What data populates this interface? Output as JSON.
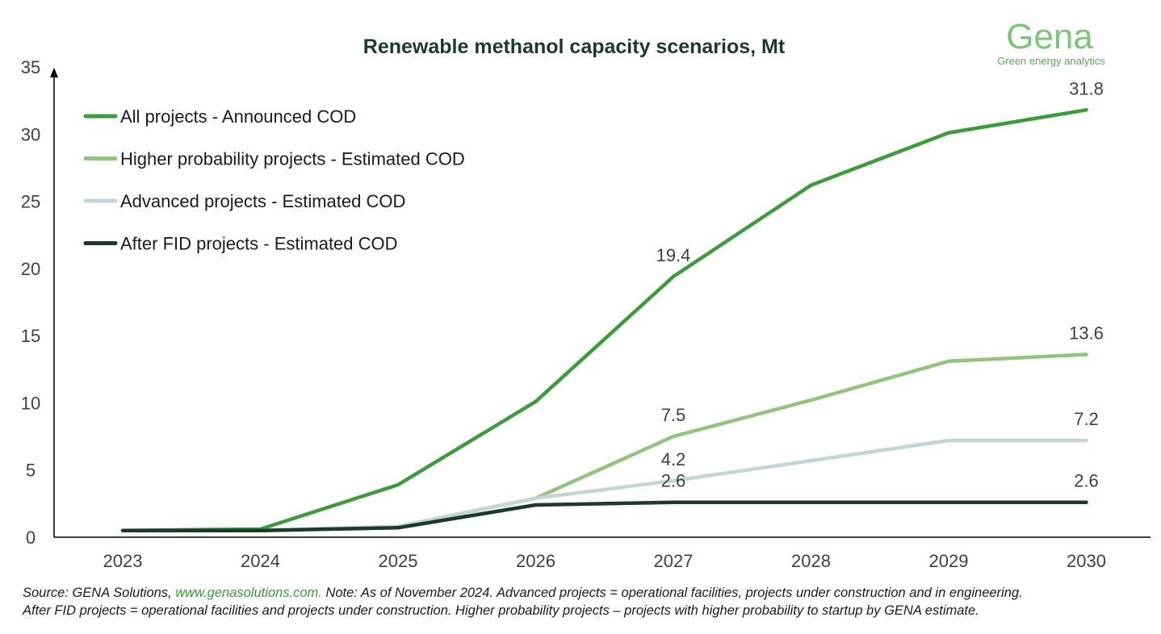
{
  "logo": {
    "name": "Gena",
    "tagline": "Green energy analytics",
    "color": "#7cc576"
  },
  "footnote": {
    "prefix": "Source: GENA Solutions, ",
    "link": "www.genasolutions.com.",
    "line1_rest": " Note: As of November 2024. Advanced projects = operational facilities, projects under construction and in engineering.",
    "line2": "After FID projects = operational facilities and projects under construction. Higher probability projects – projects with higher probability to startup by GENA estimate."
  },
  "chart_data": {
    "type": "line",
    "title": "Renewable methanol capacity scenarios, Mt",
    "xlabel": "",
    "ylabel": "",
    "categories": [
      "2023",
      "2024",
      "2025",
      "2026",
      "2027",
      "2028",
      "2029",
      "2030"
    ],
    "ylim": [
      0,
      35
    ],
    "yticks": [
      0,
      5,
      10,
      15,
      20,
      25,
      30,
      35
    ],
    "grid": false,
    "legend_position": "top-left",
    "series": [
      {
        "name": "All projects - Announced COD",
        "color": "#3d9a3d",
        "values": [
          0.5,
          0.6,
          3.9,
          10.1,
          19.4,
          26.2,
          30.1,
          31.8
        ],
        "labels": [
          {
            "index": 4,
            "text": "19.4"
          },
          {
            "index": 7,
            "text": "31.8"
          }
        ]
      },
      {
        "name": "Higher probability projects - Estimated COD",
        "color": "#93c47d",
        "values": [
          0.5,
          0.5,
          0.8,
          2.9,
          7.5,
          10.2,
          13.1,
          13.6
        ],
        "labels": [
          {
            "index": 4,
            "text": "7.5"
          },
          {
            "index": 7,
            "text": "13.6"
          }
        ]
      },
      {
        "name": "Advanced projects - Estimated COD",
        "color": "#c2d6d6",
        "values": [
          0.5,
          0.5,
          0.8,
          2.9,
          4.2,
          5.7,
          7.2,
          7.2
        ],
        "labels": [
          {
            "index": 4,
            "text": "4.2"
          },
          {
            "index": 7,
            "text": "7.2"
          }
        ]
      },
      {
        "name": "After FID projects - Estimated COD",
        "color": "#1a3a2a",
        "values": [
          0.5,
          0.5,
          0.7,
          2.4,
          2.6,
          2.6,
          2.6,
          2.6
        ],
        "labels": [
          {
            "index": 4,
            "text": "2.6"
          },
          {
            "index": 7,
            "text": "2.6"
          }
        ]
      }
    ]
  }
}
